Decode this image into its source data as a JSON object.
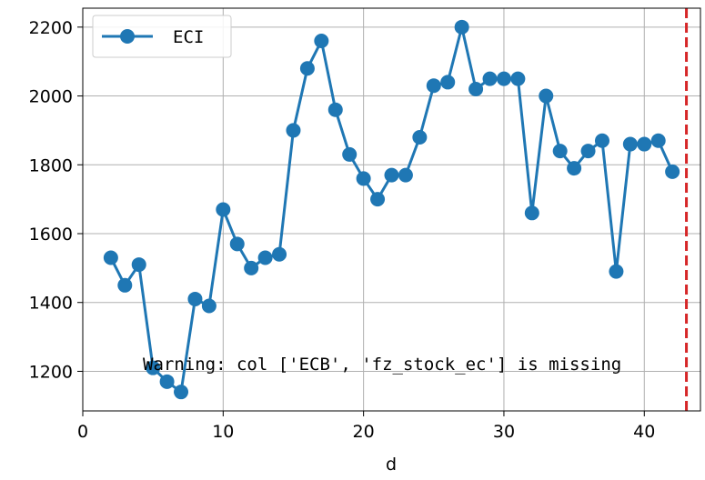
{
  "chart_data": {
    "type": "line",
    "xlabel": "d",
    "ylabel": "",
    "xlim": [
      0,
      44
    ],
    "ylim": [
      1085,
      2255
    ],
    "grid": true,
    "legend_position": "top-left",
    "x_ticks": [
      0,
      10,
      20,
      30,
      40
    ],
    "y_ticks": [
      1200,
      1400,
      1600,
      1800,
      2000,
      2200
    ],
    "x_tick_labels": [
      "0",
      "10",
      "20",
      "30",
      "40"
    ],
    "y_tick_labels": [
      "1200",
      "1400",
      "1600",
      "1800",
      "2000",
      "2200"
    ],
    "series": [
      {
        "name": "ECI",
        "color": "#1f77b4",
        "marker": "circle",
        "x": [
          2,
          3,
          4,
          5,
          6,
          7,
          8,
          9,
          10,
          11,
          12,
          13,
          14,
          15,
          16,
          17,
          18,
          19,
          20,
          21,
          22,
          23,
          24,
          25,
          26,
          27,
          28,
          29,
          30,
          31,
          32,
          33,
          34,
          35,
          36,
          37,
          38,
          39,
          40,
          41,
          42
        ],
        "y": [
          1530,
          1450,
          1510,
          1210,
          1170,
          1140,
          1410,
          1390,
          1670,
          1570,
          1500,
          1530,
          1540,
          1900,
          2080,
          2160,
          1960,
          1830,
          1760,
          1700,
          1770,
          1770,
          1880,
          2030,
          2040,
          2200,
          2020,
          2050,
          2050,
          2050,
          1660,
          2000,
          1840,
          1790,
          1840,
          1870,
          1490,
          1860,
          1860,
          1870,
          1780
        ]
      }
    ],
    "vline": {
      "x": 43,
      "color": "#d62728",
      "style": "dashed"
    },
    "annotation": "Warning: col ['ECB', 'fz_stock_ec'] is missing"
  }
}
